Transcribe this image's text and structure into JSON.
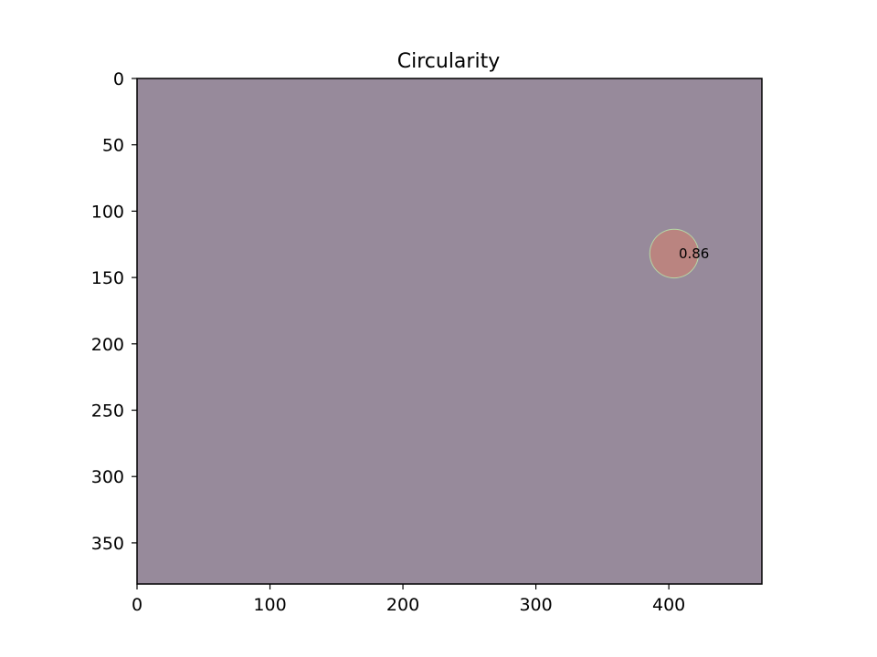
{
  "chart_data": {
    "type": "heatmap",
    "title": "Circularity",
    "xlabel": "",
    "ylabel": "",
    "image_width": 470,
    "image_height": 381,
    "xlim": [
      0,
      470
    ],
    "ylim": [
      381,
      0
    ],
    "x_ticks": [
      0,
      100,
      200,
      300,
      400
    ],
    "y_ticks": [
      0,
      50,
      100,
      150,
      200,
      250,
      300,
      350
    ],
    "background_color": "#978a9b",
    "regions": [
      {
        "label": "0.86",
        "value": 0.86,
        "center_x": 404,
        "center_y": 132,
        "radius": 18,
        "fill_color": "#ba8480",
        "edge_color": "#b6d8a6"
      }
    ],
    "grid": false
  }
}
